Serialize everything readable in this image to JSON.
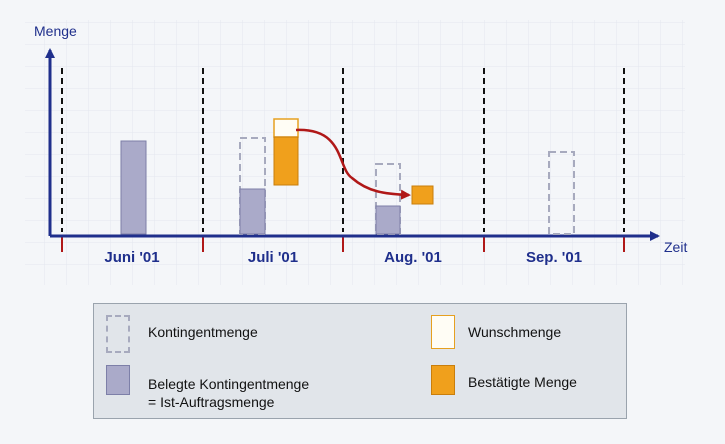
{
  "axes": {
    "y_label": "Menge",
    "x_label": "Zeit"
  },
  "months": [
    "Juni '01",
    "Juli '01",
    "Aug. '01",
    "Sep. '01"
  ],
  "legend": {
    "kontingent": "Kontingentmenge",
    "belegte_line1": "Belegte Kontingentmenge",
    "belegte_line2": "= Ist-Auftragsmenge",
    "wunsch": "Wunschmenge",
    "bestaetigt": "Bestätigte Menge"
  },
  "colors": {
    "axis": "#1f2f8c",
    "belegt": "#aaaac9",
    "kontingent_dash": "#a7aabe",
    "wunsch_border": "#e6a020",
    "bestaetigt": "#f0a01c",
    "arrow": "#b01818",
    "tick_red": "#b01818"
  }
}
